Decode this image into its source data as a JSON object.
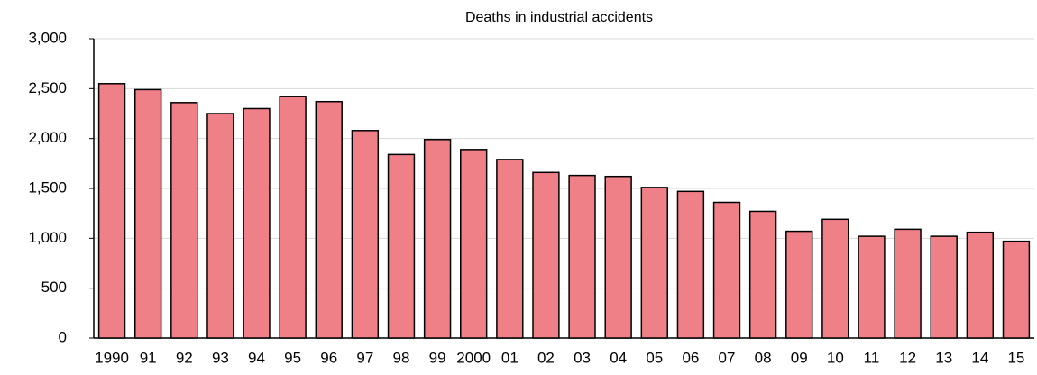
{
  "chart_data": {
    "type": "bar",
    "title": "Deaths in industrial accidents",
    "categories": [
      "1990",
      "91",
      "92",
      "93",
      "94",
      "95",
      "96",
      "97",
      "98",
      "99",
      "2000",
      "01",
      "02",
      "03",
      "04",
      "05",
      "06",
      "07",
      "08",
      "09",
      "10",
      "11",
      "12",
      "13",
      "14",
      "15"
    ],
    "values": [
      2550,
      2490,
      2360,
      2250,
      2300,
      2420,
      2370,
      2080,
      1840,
      1990,
      1890,
      1790,
      1660,
      1630,
      1620,
      1510,
      1470,
      1360,
      1270,
      1070,
      1190,
      1020,
      1090,
      1020,
      1060,
      970
    ],
    "color": "#f08088",
    "ylim": [
      0,
      3000
    ],
    "yticks": [
      0,
      500,
      {
        "value": 1000,
        "label": "1,000"
      },
      {
        "value": 1500,
        "label": "1,500"
      },
      {
        "value": 2000,
        "label": "2,000"
      },
      {
        "value": 2500,
        "label": "2,500"
      },
      {
        "value": 3000,
        "label": "3,000"
      }
    ],
    "grid": true
  }
}
